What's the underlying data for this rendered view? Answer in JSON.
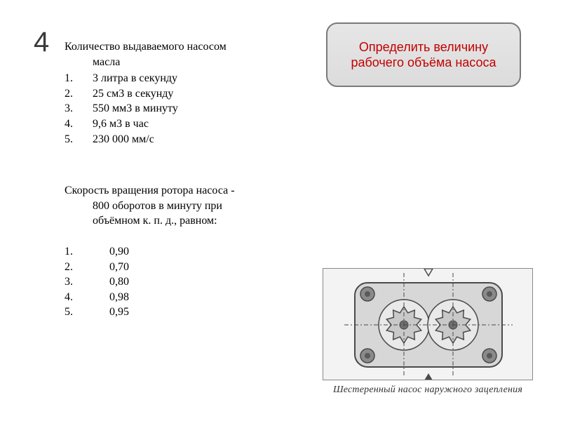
{
  "question_number": "4",
  "task_box": "Определить величину рабочего объёма насоса",
  "section1": {
    "heading_line1": "Количество выдаваемого насосом",
    "heading_line2": "масла",
    "options": [
      "3 литра в секунду",
      "25 см3 в секунду",
      "550 мм3 в минуту",
      "9,6 м3 в час",
      "230 000 мм/с"
    ]
  },
  "section2": {
    "para_line1": "Скорость вращения ротора насоса -",
    "para_line2": "800 оборотов в минуту при",
    "para_line3": "объёмном к. п. д., равном:",
    "options": [
      "0,90",
      "0,70",
      "0,80",
      "0,98",
      "0,95"
    ]
  },
  "figure": {
    "caption": "Шестеренный насос наружного зацепления",
    "diagram": {
      "type": "technical-drawing",
      "body_fill": "#d7d7d7",
      "body_stroke": "#4a4a4a",
      "gear_fill": "#c9c9c9",
      "gear_stroke": "#4a4a4a",
      "centerline_color": "#4a4a4a",
      "centerline_dash": "6 3 2 3",
      "bolt_fill": "#8a8a8a",
      "bolt_stroke": "#4a4a4a",
      "arrow_color": "#4a4a4a",
      "gear_teeth": 10,
      "body_rx": 18
    }
  },
  "colors": {
    "task_text": "#c20000",
    "task_border": "#7a7a7a",
    "task_bg_top": "#e6e6e6",
    "task_bg_bottom": "#dcdcdc",
    "page_bg": "#ffffff"
  },
  "fonts": {
    "body_family": "Times New Roman",
    "body_size_pt": 12,
    "qnum_family": "Arial",
    "qnum_size_pt": 30,
    "task_family": "Arial",
    "task_size_pt": 14,
    "caption_size_pt": 10
  }
}
